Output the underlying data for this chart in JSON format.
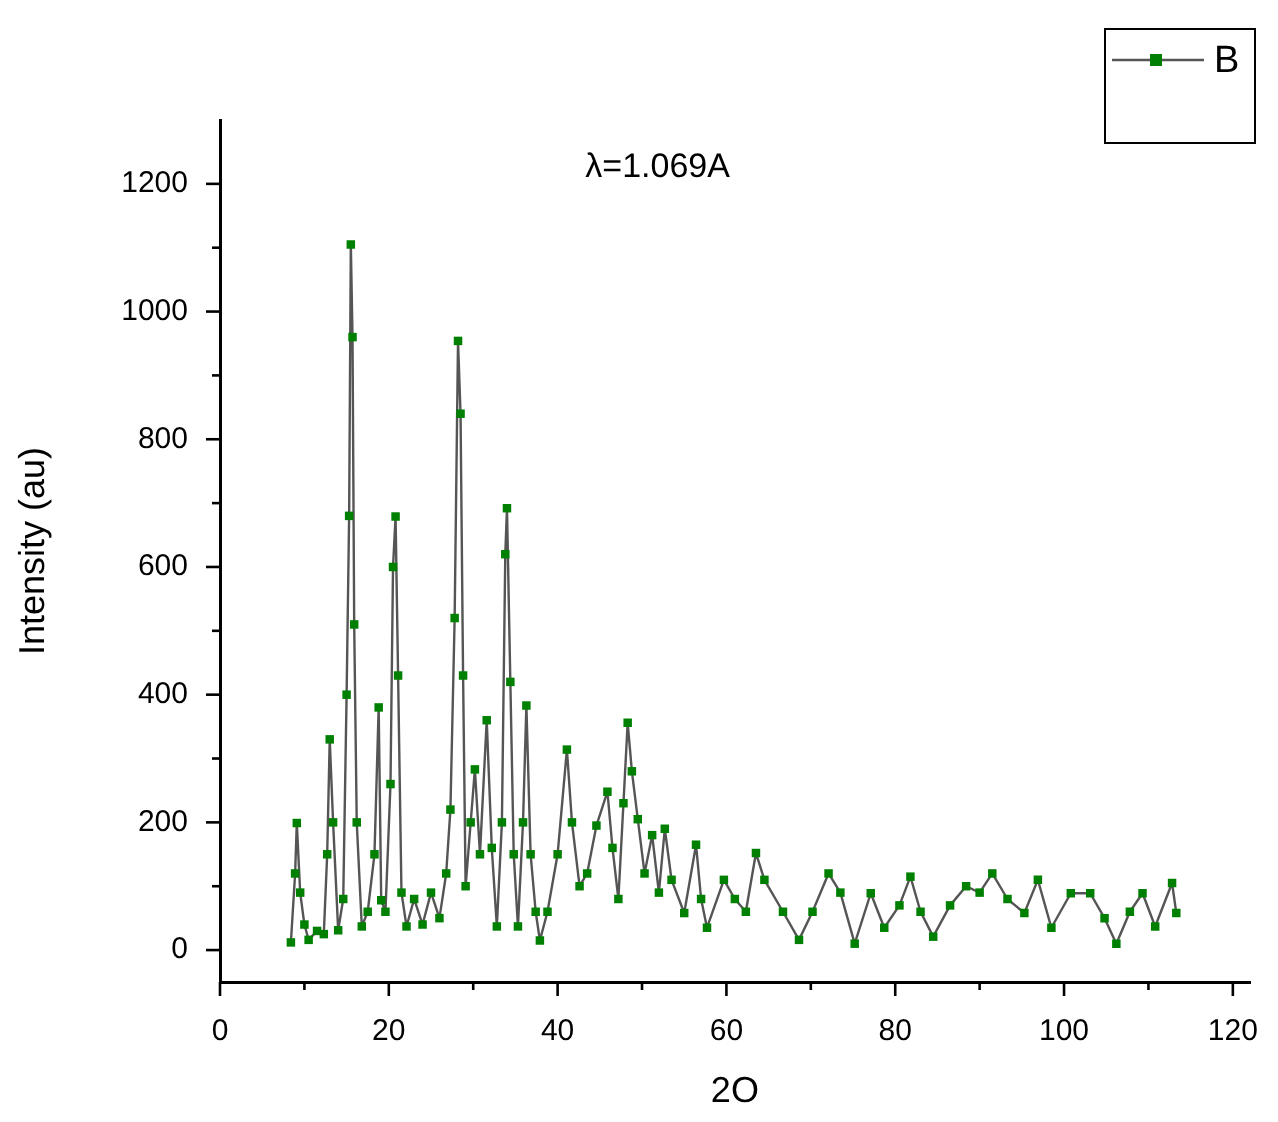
{
  "chart_data": {
    "type": "line",
    "xlabel": "2O",
    "ylabel": "Intensity (au)",
    "annotations": [
      "λ=1.069A"
    ],
    "legend": "top right",
    "marker": "square",
    "line_style": "solid",
    "grid": false,
    "xlim": [
      0,
      122
    ],
    "ylim": [
      -50,
      1300
    ],
    "xticks": [
      0,
      {
        "value": 10,
        "label": null
      },
      20,
      {
        "value": 30,
        "label": null
      },
      40,
      {
        "value": 50,
        "label": null
      },
      60,
      {
        "value": 70,
        "label": null
      },
      80,
      {
        "value": 90,
        "label": null
      },
      100,
      {
        "value": 110,
        "label": null
      },
      120
    ],
    "yticks": [
      0,
      {
        "value": 100,
        "label": null
      },
      200,
      {
        "value": 300,
        "label": null
      },
      400,
      {
        "value": 500,
        "label": null
      },
      600,
      {
        "value": 700,
        "label": null
      },
      800,
      {
        "value": 900,
        "label": null
      },
      1000,
      {
        "value": 1100,
        "label": null
      },
      1200
    ],
    "x": [
      8.4,
      8.9,
      9.1,
      9.5,
      10.0,
      10.5,
      11.5,
      12.3,
      12.7,
      13.0,
      13.4,
      14.0,
      14.6,
      15.0,
      15.3,
      15.5,
      15.7,
      15.9,
      16.2,
      16.8,
      17.5,
      18.3,
      18.8,
      19.1,
      19.6,
      20.2,
      20.5,
      20.8,
      21.1,
      21.5,
      22.1,
      23,
      24,
      25,
      26,
      26.8,
      27.3,
      27.8,
      28.2,
      28.5,
      28.8,
      29.1,
      29.7,
      30.2,
      30.8,
      31.6,
      32.2,
      32.8,
      33.4,
      33.8,
      34.0,
      34.4,
      34.8,
      35.3,
      35.9,
      36.3,
      36.8,
      37.4,
      37.9,
      38.8,
      40.0,
      41.1,
      41.7,
      42.6,
      43.5,
      44.6,
      45.9,
      46.5,
      47.2,
      47.8,
      48.3,
      48.8,
      49.5,
      50.3,
      51.2,
      52.0,
      52.7,
      53.5,
      55.0,
      56.4,
      57.0,
      57.7,
      59.7,
      61.0,
      62.3,
      63.5,
      64.5,
      66.7,
      68.6,
      70.2,
      72.1,
      73.5,
      75.2,
      77.1,
      78.7,
      80.5,
      81.8,
      83,
      84.5,
      86.5,
      88.4,
      90,
      91.5,
      93.3,
      95.3,
      96.9,
      98.5,
      100.8,
      103.1,
      104.8,
      106.2,
      107.8,
      109.3,
      110.8,
      112.8,
      113.3
    ],
    "series": [
      {
        "name": "B",
        "color": "#008000",
        "values": [
          12,
          120,
          199,
          90,
          40,
          16,
          30,
          25,
          150,
          330,
          200,
          31,
          80,
          400,
          680,
          1105,
          960,
          510,
          200,
          37,
          60,
          150,
          380,
          78,
          60,
          260,
          600,
          679,
          430,
          90,
          37,
          80,
          40,
          90,
          50,
          120,
          220,
          520,
          954,
          840,
          430,
          100,
          200,
          283,
          150,
          360,
          160,
          37,
          200,
          620,
          692,
          420,
          150,
          37,
          200,
          383,
          150,
          60,
          15,
          60,
          150,
          314,
          200,
          100,
          120,
          195,
          248,
          160,
          80,
          230,
          356,
          280,
          205,
          120,
          180,
          90,
          190,
          110,
          58,
          165,
          80,
          35,
          110,
          80,
          60,
          152,
          110,
          60,
          16,
          60,
          120,
          90,
          10,
          89,
          35,
          70,
          115,
          60,
          21,
          70,
          100,
          90,
          120,
          80,
          58,
          110,
          35,
          89,
          89,
          50,
          10,
          60,
          89,
          37,
          105,
          58
        ]
      }
    ]
  }
}
